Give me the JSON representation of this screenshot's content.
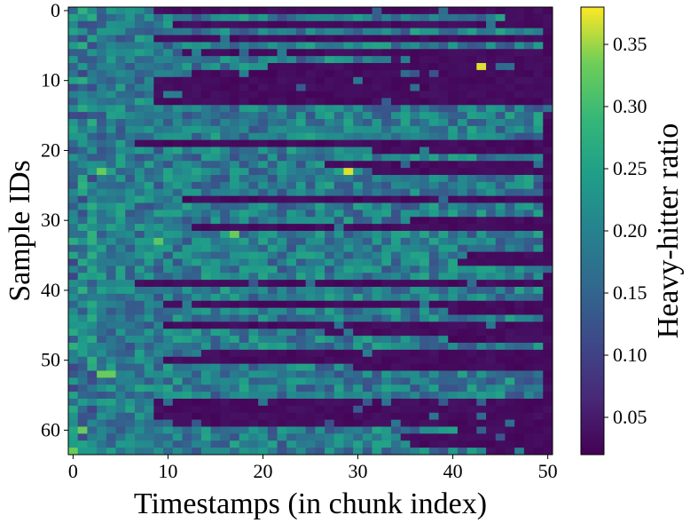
{
  "chart_data": {
    "type": "heatmap",
    "xlabel": "Timestamps (in chunk index)",
    "ylabel": "Sample IDs",
    "colorbar_label": "Heavy-hitter ratio",
    "colormap": "viridis",
    "n_rows": 64,
    "n_cols": 51,
    "x_range": [
      0,
      50
    ],
    "y_range": [
      0,
      63
    ],
    "y_inverted": true,
    "x_ticks": [
      "0",
      "10",
      "20",
      "30",
      "40",
      "50"
    ],
    "y_ticks": [
      "0",
      "10",
      "20",
      "30",
      "40",
      "50",
      "60"
    ],
    "color_range": [
      0.02,
      0.38
    ],
    "colorbar_ticks": [
      "0.05",
      "0.10",
      "0.15",
      "0.20",
      "0.25",
      "0.30",
      "0.35"
    ],
    "approx_sparsify_start_per_row": [
      9,
      46,
      11,
      50,
      9,
      50,
      12,
      34,
      21,
      13,
      9,
      9,
      9,
      9,
      50,
      50,
      50,
      50,
      50,
      7,
      32,
      50,
      27,
      32,
      50,
      50,
      50,
      12,
      50,
      50,
      36,
      13,
      50,
      50,
      50,
      42,
      41,
      50,
      50,
      7,
      50,
      50,
      10,
      40,
      50,
      10,
      27,
      40,
      50,
      14,
      10,
      30,
      50,
      50,
      50,
      50,
      9,
      9,
      9,
      9,
      41,
      35,
      36,
      44
    ],
    "highlights": [
      {
        "row": 23,
        "col": 3,
        "value": 0.33
      },
      {
        "row": 23,
        "col": 29,
        "value": 0.37
      },
      {
        "row": 8,
        "col": 43,
        "value": 0.37
      },
      {
        "row": 32,
        "col": 17,
        "value": 0.33
      },
      {
        "row": 52,
        "col": 3,
        "value": 0.33
      },
      {
        "row": 52,
        "col": 4,
        "value": 0.33
      },
      {
        "row": 63,
        "col": 0,
        "value": 0.33
      },
      {
        "row": 60,
        "col": 1,
        "value": 0.33
      },
      {
        "row": 33,
        "col": 9,
        "value": 0.32
      }
    ]
  }
}
